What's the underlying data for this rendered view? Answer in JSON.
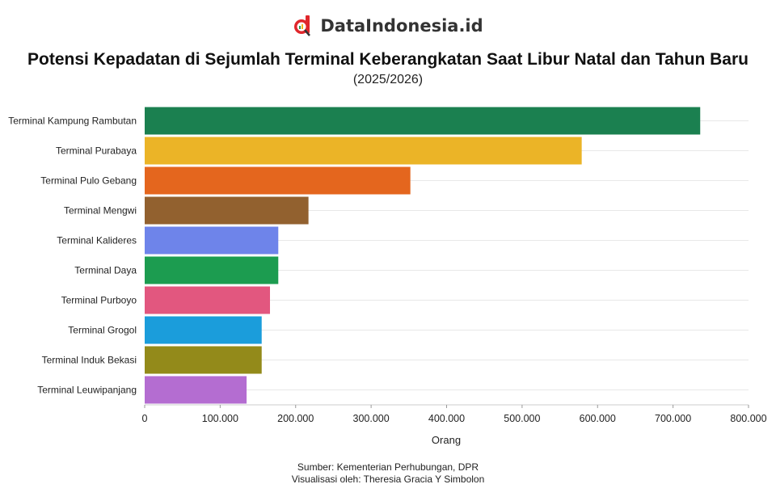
{
  "brand": {
    "name": "DataIndonesia.id"
  },
  "chart_data": {
    "type": "bar",
    "orientation": "horizontal",
    "title": "Potensi Kepadatan di Sejumlah Terminal Keberangkatan Saat Libur Natal dan Tahun Baru",
    "subtitle": "(2025/2026)",
    "xlabel": "Orang",
    "ylabel": "",
    "xlim": [
      0,
      800000
    ],
    "xticks": [
      0,
      100000,
      200000,
      300000,
      400000,
      500000,
      600000,
      700000,
      800000
    ],
    "xtick_labels": [
      "0",
      "100.000",
      "200.000",
      "300.000",
      "400.000",
      "500.000",
      "600.000",
      "700.000",
      "800.000"
    ],
    "grid": true,
    "categories": [
      "Terminal Kampung Rambutan",
      "Terminal Purabaya",
      "Terminal Pulo Gebang",
      "Terminal Mengwi",
      "Terminal Kalideres",
      "Terminal Daya",
      "Terminal Purboyo",
      "Terminal Grogol",
      "Terminal Induk Bekasi",
      "Terminal Leuwipanjang"
    ],
    "values": [
      736000,
      579000,
      352000,
      217000,
      177000,
      177000,
      166000,
      155000,
      155000,
      135000
    ],
    "colors": [
      "#1b8050",
      "#ebb427",
      "#e4661e",
      "#92612f",
      "#6e84ea",
      "#1c9c50",
      "#e2577f",
      "#1b9ddb",
      "#938a1a",
      "#b46dd1"
    ]
  },
  "footer": {
    "source": "Sumber: Kementerian Perhubungan, DPR",
    "credit": "Visualisasi oleh: Theresia Gracia Y Simbolon"
  }
}
